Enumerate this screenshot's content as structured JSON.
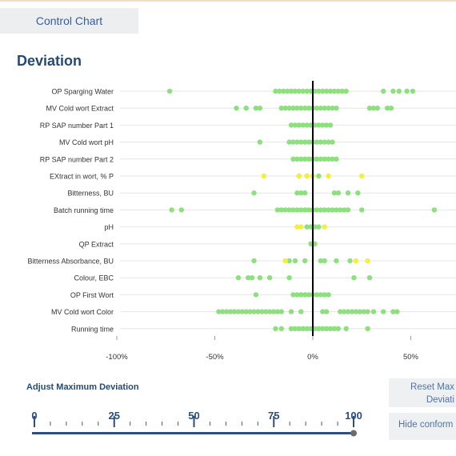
{
  "tab": {
    "label": "Control Chart"
  },
  "section_title": "Deviation",
  "chart_data": {
    "type": "scatter",
    "title": "",
    "xlim": [
      -120,
      75
    ],
    "x_ticks": [
      {
        "value": -100,
        "label": "-100%"
      },
      {
        "value": -50,
        "label": "-50%"
      },
      {
        "value": 0,
        "label": "0%"
      },
      {
        "value": 50,
        "label": "50%"
      }
    ],
    "colors": {
      "conform": "#8ee07e",
      "warning": "#f4ee3c",
      "zero_line": "#000000",
      "grid": "#e6e6e6"
    },
    "categories": [
      "OP Sparging Water",
      "MV Cold wort Extract",
      "RP SAP number Part 1",
      "MV Cold wort pH",
      "RP SAP number Part 2",
      "EXtract in wort, % P",
      "Bitterness, BU",
      "Batch running time",
      "pH",
      "QP Extract",
      "Bitterness Absorbance, BU",
      "Colour, EBC",
      "OP First Wort",
      "MV Cold wort Color",
      "Running time"
    ],
    "series": [
      {
        "status": "conform",
        "points": [
          {
            "category": "OP Sparging Water",
            "x": [
              -73,
              -19,
              -17,
              -15,
              -13,
              -11,
              -9,
              -7,
              -5,
              -3,
              -1,
              1,
              3,
              5,
              7,
              9,
              11,
              13,
              15,
              17,
              36,
              41,
              44,
              48,
              51
            ]
          },
          {
            "category": "MV Cold wort Extract",
            "x": [
              -39,
              -34,
              -29,
              -27,
              -16,
              -14,
              -12,
              -10,
              -8,
              -6,
              -4,
              -2,
              0,
              2,
              4,
              6,
              8,
              10,
              12,
              29,
              31,
              33,
              38,
              40
            ]
          },
          {
            "category": "RP SAP number Part 1",
            "x": [
              -11,
              -9,
              -7,
              -5,
              -3,
              -1,
              1,
              3,
              5,
              7,
              9
            ]
          },
          {
            "category": "MV Cold wort pH",
            "x": [
              -27,
              -12,
              -10,
              -8,
              -6,
              -4,
              -2,
              0,
              2,
              4,
              6,
              8,
              10
            ]
          },
          {
            "category": "RP SAP number Part 2",
            "x": [
              -10,
              -8,
              -6,
              -4,
              -2,
              0,
              2,
              4,
              6,
              8,
              10,
              12
            ]
          },
          {
            "category": "EXtract in wort, % P",
            "x": [
              -7,
              -3,
              3
            ]
          },
          {
            "category": "Bitterness, BU",
            "x": [
              -30,
              -8,
              -6,
              -4,
              11,
              13,
              18,
              23
            ]
          },
          {
            "category": "Batch running time",
            "x": [
              -72,
              -67,
              -18,
              -16,
              -14,
              -12,
              -10,
              -8,
              -6,
              -4,
              -2,
              0,
              2,
              4,
              6,
              8,
              10,
              12,
              14,
              16,
              18,
              25,
              62
            ]
          },
          {
            "category": "pH",
            "x": [
              -3,
              -1,
              1,
              3
            ]
          },
          {
            "category": "QP Extract",
            "x": [
              -1,
              1
            ]
          },
          {
            "category": "Bitterness Absorbance, BU",
            "x": [
              -30,
              -12,
              -9,
              -4,
              4,
              6,
              12,
              19
            ]
          },
          {
            "category": "Colour, EBC",
            "x": [
              -38,
              -33,
              -31,
              -27,
              -22,
              -12,
              21,
              29
            ]
          },
          {
            "category": "OP First Wort",
            "x": [
              -29,
              -10,
              -8,
              -6,
              -4,
              -2,
              0,
              2,
              4,
              6,
              8
            ]
          },
          {
            "category": "MV Cold wort Color",
            "x": [
              -48,
              -46,
              -44,
              -42,
              -40,
              -38,
              -36,
              -34,
              -32,
              -30,
              -28,
              -26,
              -24,
              -22,
              -20,
              -18,
              -16,
              -11,
              -6,
              5,
              7,
              14,
              16,
              18,
              20,
              22,
              24,
              26,
              28,
              31,
              36,
              41,
              43
            ]
          },
          {
            "category": "Running time",
            "x": [
              -19,
              -16,
              -11,
              -9,
              -7,
              -5,
              -3,
              -1,
              1,
              3,
              5,
              7,
              9,
              11,
              13,
              17,
              28
            ]
          }
        ]
      },
      {
        "status": "warning",
        "points": [
          {
            "category": "EXtract in wort, % P",
            "x": [
              -25,
              -7,
              -3,
              0,
              8,
              25
            ]
          },
          {
            "category": "pH",
            "x": [
              -8,
              -6,
              6
            ]
          },
          {
            "category": "Bitterness Absorbance, BU",
            "x": [
              -14,
              22,
              28
            ]
          }
        ]
      }
    ]
  },
  "slider": {
    "title": "Adjust Maximum Deviation",
    "min": 0,
    "max": 100,
    "value": 100,
    "major_ticks": [
      {
        "value": 0,
        "label": "0"
      },
      {
        "value": 25,
        "label": "25"
      },
      {
        "value": 50,
        "label": "50"
      },
      {
        "value": 75,
        "label": "75"
      },
      {
        "value": 100,
        "label": "100"
      }
    ],
    "minor_tick_step": 5,
    "track_color": "#2b4f80",
    "handle_color": "#6b6b6b"
  },
  "buttons": {
    "reset_line1": "Reset Max",
    "reset_line2": "Deviati",
    "hide": "Hide conform"
  }
}
